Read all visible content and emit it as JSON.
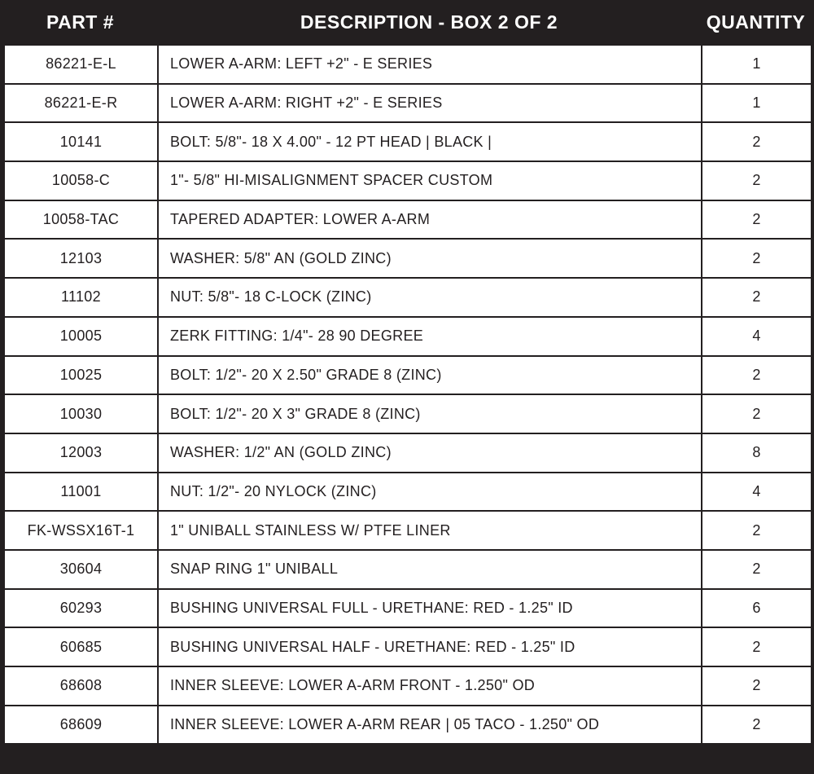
{
  "table": {
    "header": [
      "PART #",
      "DESCRIPTION - BOX 2 OF 2",
      "QUANTITY"
    ],
    "rows": [
      [
        "86221-E-L",
        "LOWER A-ARM: LEFT +2\" - E SERIES",
        "1"
      ],
      [
        "86221-E-R",
        "LOWER A-ARM: RIGHT +2\" - E SERIES",
        "1"
      ],
      [
        "10141",
        "BOLT: 5/8\"- 18 X 4.00\" - 12 PT HEAD | BLACK |",
        "2"
      ],
      [
        "10058-C",
        "1\"- 5/8\" HI-MISALIGNMENT SPACER CUSTOM",
        "2"
      ],
      [
        "10058-TAC",
        "TAPERED ADAPTER: LOWER A-ARM",
        "2"
      ],
      [
        "12103",
        "WASHER: 5/8\" AN (GOLD ZINC)",
        "2"
      ],
      [
        "11102",
        "NUT: 5/8\"- 18 C-LOCK (ZINC)",
        "2"
      ],
      [
        "10005",
        "ZERK FITTING: 1/4\"- 28 90 DEGREE",
        "4"
      ],
      [
        "10025",
        "BOLT: 1/2\"- 20 X 2.50\" GRADE 8 (ZINC)",
        "2"
      ],
      [
        "10030",
        "BOLT: 1/2\"- 20 X 3\" GRADE 8 (ZINC)",
        "2"
      ],
      [
        "12003",
        "WASHER: 1/2\" AN (GOLD ZINC)",
        "8"
      ],
      [
        "11001",
        "NUT: 1/2\"- 20 NYLOCK (ZINC)",
        "4"
      ],
      [
        "FK-WSSX16T-1",
        "1\" UNIBALL STAINLESS W/ PTFE LINER",
        "2"
      ],
      [
        "30604",
        "SNAP RING 1\" UNIBALL",
        "2"
      ],
      [
        "60293",
        "BUSHING UNIVERSAL FULL - URETHANE: RED - 1.25\" ID",
        "6"
      ],
      [
        "60685",
        "BUSHING UNIVERSAL HALF - URETHANE: RED - 1.25\" ID",
        "2"
      ],
      [
        "68608",
        "INNER SLEEVE: LOWER A-ARM FRONT - 1.250\" OD",
        "2"
      ],
      [
        "68609",
        "INNER SLEEVE: LOWER A-ARM REAR | 05 TACO - 1.250\" OD",
        "2"
      ]
    ]
  }
}
